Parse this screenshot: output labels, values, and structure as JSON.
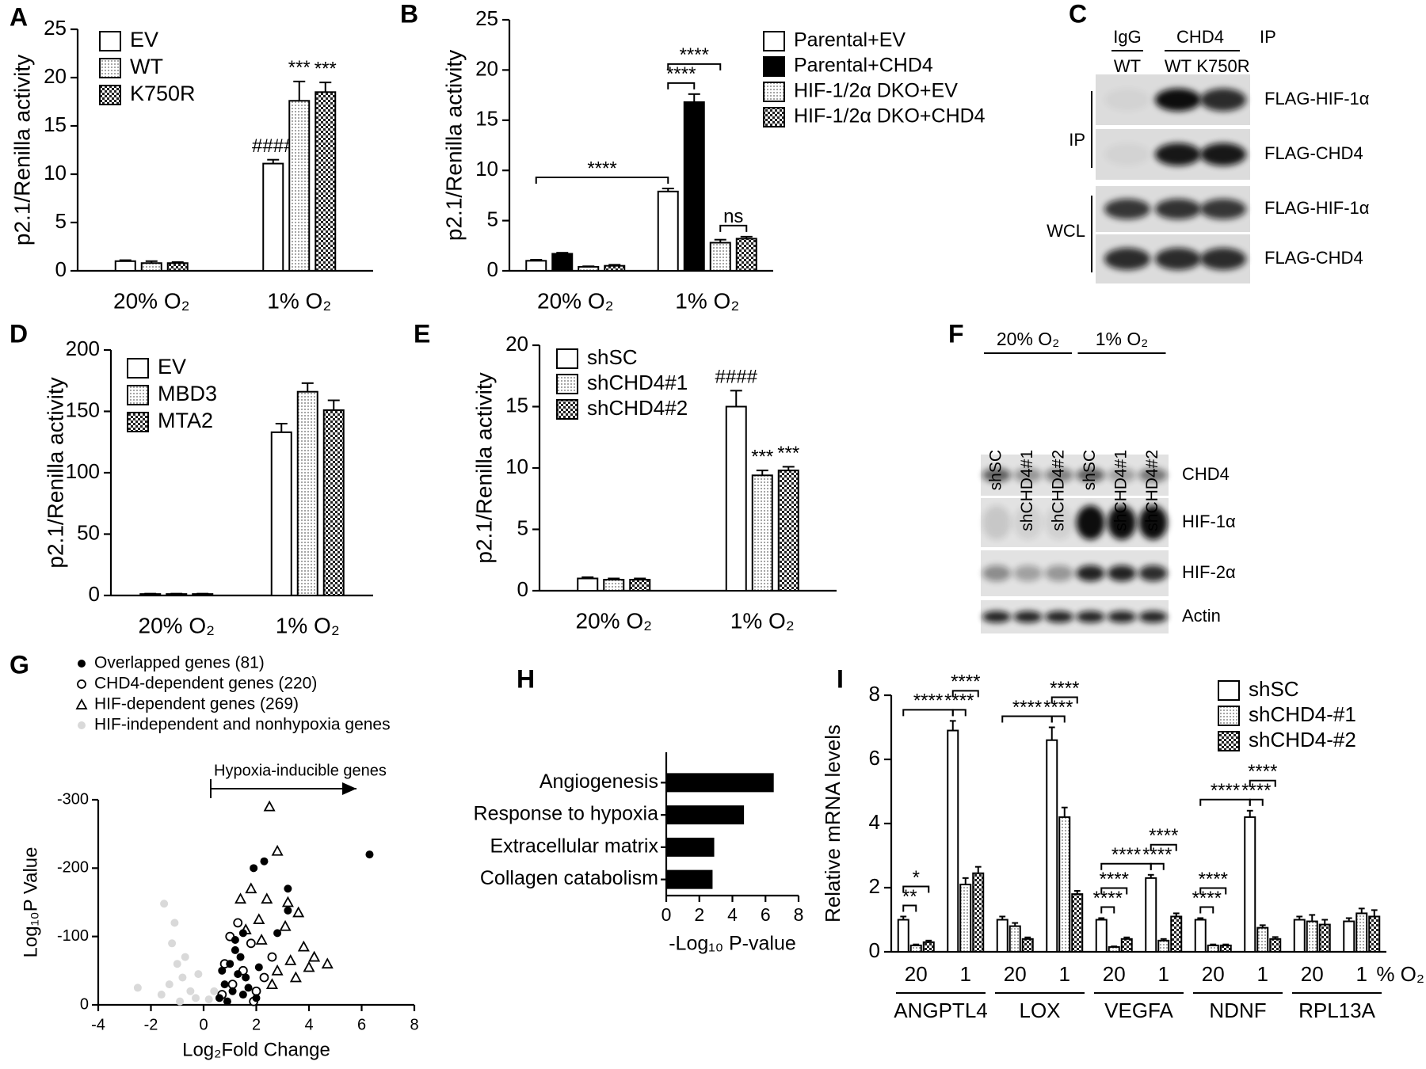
{
  "chart_data": [
    {
      "type": "bar",
      "label": "A",
      "ylabel": "p2.1/Renilla activity",
      "categories": [
        "20% O₂",
        "1% O₂"
      ],
      "series": [
        {
          "name": "EV",
          "pattern": "open",
          "values": [
            1.0,
            11.1
          ],
          "errors": [
            0.1,
            0.4
          ],
          "annotations": [
            null,
            "####"
          ]
        },
        {
          "name": "WT",
          "pattern": "dots",
          "values": [
            0.8,
            17.6
          ],
          "errors": [
            0.2,
            2.0
          ],
          "annotations": [
            null,
            "***"
          ]
        },
        {
          "name": "K750R",
          "pattern": "checker",
          "values": [
            0.8,
            18.5
          ],
          "errors": [
            0.1,
            1.0
          ],
          "annotations": [
            null,
            "***"
          ]
        }
      ],
      "ylim": [
        0,
        25
      ],
      "yticks": [
        0,
        5,
        10,
        15,
        20,
        25
      ],
      "legend": "upper left"
    },
    {
      "type": "bar",
      "label": "B",
      "ylabel": "p2.1/Renilla activity",
      "categories": [
        "20% O₂",
        "1% O₂"
      ],
      "series": [
        {
          "name": "Parental+EV",
          "pattern": "open",
          "values": [
            1.0,
            7.9
          ],
          "errors": [
            0.1,
            0.3
          ]
        },
        {
          "name": "Parental+CHD4",
          "pattern": "solid",
          "values": [
            1.7,
            16.8
          ],
          "errors": [
            0.1,
            0.8
          ]
        },
        {
          "name": "HIF-1/2α DKO+EV",
          "pattern": "dots",
          "values": [
            0.4,
            2.8
          ],
          "errors": [
            0.05,
            0.3
          ]
        },
        {
          "name": "HIF-1/2α DKO+CHD4",
          "pattern": "checker",
          "values": [
            0.5,
            3.2
          ],
          "errors": [
            0.1,
            0.2
          ]
        }
      ],
      "comparisons": [
        {
          "label": "****",
          "from": [
            0,
            0
          ],
          "to": [
            0,
            1
          ]
        },
        {
          "label": "****",
          "from": [
            0,
            1
          ],
          "to": [
            1,
            1
          ]
        },
        {
          "label": "****",
          "from": [
            0,
            1
          ],
          "to": [
            2,
            1
          ]
        },
        {
          "label": "ns",
          "from": [
            2,
            1
          ],
          "to": [
            3,
            1
          ]
        }
      ],
      "ylim": [
        0,
        25
      ],
      "yticks": [
        0,
        5,
        10,
        15,
        20,
        25
      ],
      "legend": "upper right"
    },
    {
      "type": "bar",
      "label": "D",
      "ylabel": "p2.1/Renilla activity",
      "categories": [
        "20% O₂",
        "1% O₂"
      ],
      "series": [
        {
          "name": "EV",
          "pattern": "open",
          "values": [
            1.2,
            133
          ],
          "errors": [
            0.3,
            7
          ]
        },
        {
          "name": "MBD3",
          "pattern": "dots",
          "values": [
            1.2,
            166
          ],
          "errors": [
            0.3,
            7
          ]
        },
        {
          "name": "MTA2",
          "pattern": "checker",
          "values": [
            1.2,
            151
          ],
          "errors": [
            0.3,
            8
          ]
        }
      ],
      "ylim": [
        0,
        200
      ],
      "yticks": [
        0,
        50,
        100,
        150,
        200
      ],
      "legend": "upper left"
    },
    {
      "type": "bar",
      "label": "E",
      "ylabel": "p2.1/Renilla activity",
      "categories": [
        "20% O₂",
        "1% O₂"
      ],
      "series": [
        {
          "name": "shSC",
          "pattern": "open",
          "values": [
            1.0,
            15.0
          ],
          "errors": [
            0.1,
            1.3
          ],
          "annotations": [
            null,
            "####"
          ]
        },
        {
          "name": "shCHD4#1",
          "pattern": "dots",
          "values": [
            0.9,
            9.4
          ],
          "errors": [
            0.1,
            0.4
          ],
          "annotations": [
            null,
            "***"
          ]
        },
        {
          "name": "shCHD4#2",
          "pattern": "checker",
          "values": [
            0.9,
            9.8
          ],
          "errors": [
            0.1,
            0.3
          ],
          "annotations": [
            null,
            "***"
          ]
        }
      ],
      "ylim": [
        0,
        20
      ],
      "yticks": [
        0,
        5,
        10,
        15,
        20
      ],
      "legend": "upper left"
    },
    {
      "type": "scatter",
      "label": "G",
      "xlabel": "Log₂Fold Change",
      "ylabel": "Log₁₀P Value",
      "annotation": "Hypoxia-inducible genes",
      "series": [
        {
          "name": "Overlapped genes (81)",
          "marker": "circle",
          "filled": true,
          "color": "#000000",
          "x": [
            6.3,
            3.2,
            2.3,
            3.2,
            1.9,
            1.5,
            1.2,
            1.0,
            1.3,
            0.8,
            1.6,
            2.1,
            1.1,
            0.6,
            1.4,
            2.8,
            0.9,
            1.7,
            1.2,
            0.7,
            1.5,
            2.0
          ],
          "values": [
            -220,
            -170,
            -210,
            -138,
            -200,
            -105,
            -80,
            -60,
            -45,
            -30,
            -40,
            -55,
            -20,
            -10,
            -70,
            -105,
            -5,
            -25,
            -95,
            -50,
            -15,
            -10
          ]
        },
        {
          "name": "CHD4-dependent genes (220)",
          "marker": "circle",
          "filled": false,
          "color": "#000000",
          "x": [
            1.0,
            1.8,
            2.6,
            2.0,
            1.3,
            0.8,
            1.5,
            2.3,
            0.7,
            1.1,
            1.9
          ],
          "values": [
            -100,
            -90,
            -70,
            -20,
            -120,
            -60,
            -50,
            -40,
            -15,
            -30,
            -5
          ]
        },
        {
          "name": "HIF-dependent genes (269)",
          "marker": "triangle",
          "filled": false,
          "color": "#000000",
          "x": [
            2.5,
            2.8,
            3.2,
            3.1,
            3.6,
            3.8,
            4.2,
            4.0,
            4.7,
            3.3,
            2.4,
            1.8,
            2.1,
            1.4,
            2.8,
            3.5,
            2.2,
            1.6,
            2.6
          ],
          "values": [
            -290,
            -225,
            -150,
            -115,
            -135,
            -85,
            -70,
            -55,
            -60,
            -65,
            -155,
            -170,
            -125,
            -155,
            -50,
            -40,
            -95,
            -110,
            -30
          ]
        },
        {
          "name": "HIF-independent and nonhypoxia genes",
          "marker": "circle",
          "filled": true,
          "color": "#d9d9d9",
          "x": [
            -2.5,
            -1.5,
            -1.2,
            -1.0,
            -0.8,
            -0.5,
            -0.3,
            -1.3,
            -0.7,
            -1.6,
            -0.9,
            0.2,
            0.4,
            -0.2,
            -1.1
          ],
          "values": [
            -25,
            -148,
            -90,
            -60,
            -40,
            -20,
            -10,
            -30,
            -70,
            -15,
            -5,
            -8,
            -20,
            -45,
            -120
          ]
        }
      ],
      "xlim": [
        -4,
        8
      ],
      "xticks": [
        -4,
        -2,
        0,
        2,
        4,
        6,
        8
      ],
      "ylim": [
        0,
        -300
      ],
      "yticks": [
        0,
        -100,
        -200,
        -300
      ],
      "legend": "upper left"
    },
    {
      "type": "barh",
      "label": "H",
      "xlabel": "-Log₁₀ P-value",
      "categories": [
        "Angiogenesis",
        "Response to hypoxia",
        "Extracellular matrix",
        "Collagen catabolism"
      ],
      "values": [
        6.5,
        4.7,
        2.9,
        2.8
      ],
      "color": "#000000",
      "xlim": [
        0,
        8
      ],
      "xticks": [
        0,
        2,
        4,
        6,
        8
      ]
    },
    {
      "type": "bar",
      "label": "I",
      "ylabel": "Relative mRNA levels",
      "xlabel": "% O₂",
      "categories": [
        "20",
        "1",
        "20",
        "1",
        "20",
        "1",
        "20",
        "1",
        "20",
        "1"
      ],
      "groups": [
        "ANGPTL4",
        "LOX",
        "VEGFA",
        "NDNF",
        "RPL13A"
      ],
      "series": [
        {
          "name": "shSC",
          "pattern": "open",
          "values": [
            1.0,
            6.9,
            1.0,
            6.6,
            1.0,
            2.3,
            1.0,
            4.2,
            1.0,
            0.95
          ],
          "errors": [
            0.1,
            0.3,
            0.1,
            0.4,
            0.05,
            0.1,
            0.05,
            0.2,
            0.1,
            0.1
          ]
        },
        {
          "name": "shCHD4-#1",
          "pattern": "dots",
          "values": [
            0.2,
            2.1,
            0.8,
            4.2,
            0.15,
            0.35,
            0.2,
            0.75,
            0.95,
            1.2
          ],
          "errors": [
            0.03,
            0.2,
            0.1,
            0.3,
            0.02,
            0.05,
            0.03,
            0.08,
            0.2,
            0.15
          ]
        },
        {
          "name": "shCHD4-#2",
          "pattern": "checker",
          "values": [
            0.3,
            2.45,
            0.4,
            1.8,
            0.4,
            1.1,
            0.2,
            0.4,
            0.85,
            1.1
          ],
          "errors": [
            0.05,
            0.2,
            0.05,
            0.1,
            0.05,
            0.1,
            0.03,
            0.06,
            0.15,
            0.2
          ]
        }
      ],
      "comparisons": [
        {
          "label": "**",
          "from": [
            0,
            0
          ],
          "to": [
            1,
            0
          ]
        },
        {
          "label": "*",
          "from": [
            0,
            0
          ],
          "to": [
            2,
            0
          ]
        },
        {
          "label": "****",
          "from": [
            0,
            0
          ],
          "to": [
            0,
            1
          ]
        },
        {
          "label": "****",
          "from": [
            0,
            1
          ],
          "to": [
            1,
            1
          ]
        },
        {
          "label": "****",
          "from": [
            0,
            1
          ],
          "to": [
            2,
            1
          ]
        },
        {
          "label": "****",
          "from": [
            0,
            2
          ],
          "to": [
            0,
            3
          ]
        },
        {
          "label": "****",
          "from": [
            0,
            3
          ],
          "to": [
            1,
            3
          ]
        },
        {
          "label": "****",
          "from": [
            0,
            3
          ],
          "to": [
            2,
            3
          ]
        },
        {
          "label": "****",
          "from": [
            0,
            4
          ],
          "to": [
            1,
            4
          ]
        },
        {
          "label": "****",
          "from": [
            0,
            4
          ],
          "to": [
            2,
            4
          ]
        },
        {
          "label": "****",
          "from": [
            0,
            4
          ],
          "to": [
            0,
            5
          ]
        },
        {
          "label": "****",
          "from": [
            0,
            5
          ],
          "to": [
            1,
            5
          ]
        },
        {
          "label": "****",
          "from": [
            0,
            5
          ],
          "to": [
            2,
            5
          ]
        },
        {
          "label": "****",
          "from": [
            0,
            6
          ],
          "to": [
            1,
            6
          ]
        },
        {
          "label": "****",
          "from": [
            0,
            6
          ],
          "to": [
            2,
            6
          ]
        },
        {
          "label": "****",
          "from": [
            0,
            6
          ],
          "to": [
            0,
            7
          ]
        },
        {
          "label": "****",
          "from": [
            0,
            7
          ],
          "to": [
            1,
            7
          ]
        },
        {
          "label": "****",
          "from": [
            0,
            7
          ],
          "to": [
            2,
            7
          ]
        }
      ],
      "ylim": [
        0,
        8
      ],
      "yticks": [
        0,
        2,
        4,
        6,
        8
      ],
      "legend": "upper right"
    }
  ],
  "blot_c": {
    "label": "C",
    "groups": [
      "IgG",
      "CHD4"
    ],
    "ip": "IP",
    "lanes": [
      "WT",
      "WT",
      "K750R"
    ],
    "sections": [
      "IP",
      "WCL"
    ],
    "bands": [
      "FLAG-HIF-1α",
      "FLAG-CHD4",
      "FLAG-HIF-1α",
      "FLAG-CHD4"
    ]
  },
  "blot_f": {
    "label": "F",
    "groups": [
      "20% O₂",
      "1% O₂"
    ],
    "lanes": [
      "shSC",
      "shCHD4#1",
      "shCHD4#2",
      "shSC",
      "shCHD4#1",
      "shCHD4#2"
    ],
    "bands": [
      "CHD4",
      "HIF-1α",
      "HIF-2α",
      "Actin"
    ]
  }
}
